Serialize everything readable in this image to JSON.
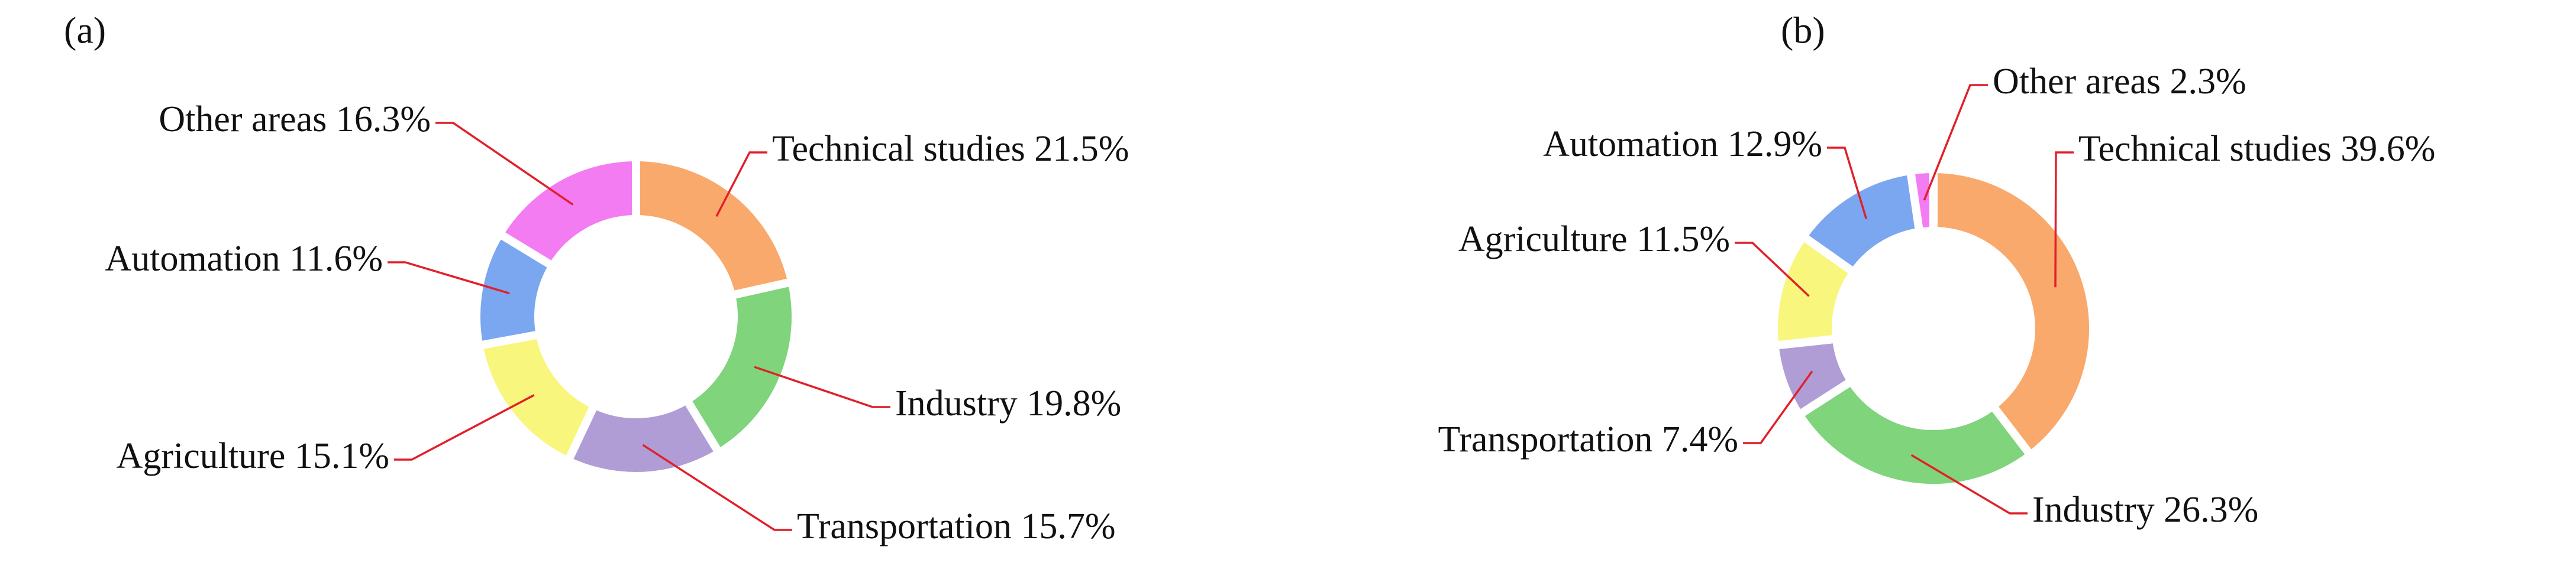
{
  "chart_data": [
    {
      "type": "pie",
      "title": "(a)",
      "categories": [
        "Technical studies",
        "Industry",
        "Transportation",
        "Agriculture",
        "Automation",
        "Other areas"
      ],
      "values": [
        21.5,
        19.8,
        15.7,
        15.1,
        11.6,
        16.3
      ],
      "value_labels": [
        "21.5%",
        "19.8%",
        "15.7%",
        "15.1%",
        "11.6%",
        "16.3%"
      ],
      "colors": [
        "#f9a96b",
        "#7fd47c",
        "#b19dd6",
        "#f8f67c",
        "#7ba7f0",
        "#f47cf2"
      ]
    },
    {
      "type": "pie",
      "title": "(b)",
      "categories": [
        "Technical studies",
        "Industry",
        "Transportation",
        "Agriculture",
        "Automation",
        "Other areas"
      ],
      "values": [
        39.6,
        26.3,
        7.4,
        11.5,
        12.9,
        2.3
      ],
      "value_labels": [
        "39.6%",
        "26.3%",
        "7.4%",
        "11.5%",
        "12.9%",
        "2.3%"
      ],
      "colors": [
        "#f9a96b",
        "#7fd47c",
        "#b19dd6",
        "#f8f67c",
        "#7ba7f0",
        "#f47cf2"
      ]
    }
  ]
}
